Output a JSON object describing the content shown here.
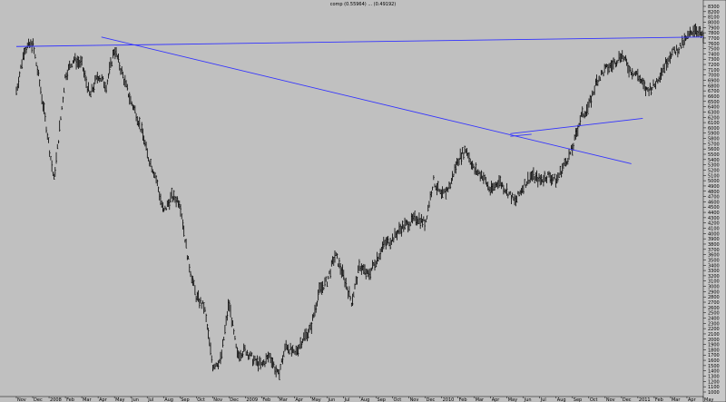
{
  "title": "comp (0.55964) ... (0.49192)",
  "chart_data": {
    "type": "line",
    "style": "ohlc-bars",
    "y_axis_side": "right",
    "grid": false,
    "title": "comp (0.55964) ... (0.49192)",
    "xlabel": "",
    "ylabel": "",
    "ylim": [
      1000,
      8300
    ],
    "yticks": [
      1000,
      1100,
      1200,
      1300,
      1400,
      1500,
      1600,
      1700,
      1800,
      1900,
      2000,
      2100,
      2200,
      2300,
      2400,
      2500,
      2600,
      2700,
      2800,
      2900,
      3000,
      3100,
      3200,
      3300,
      3400,
      3500,
      3600,
      3700,
      3800,
      3900,
      4000,
      4100,
      4200,
      4300,
      4400,
      4500,
      4600,
      4700,
      4800,
      4900,
      5000,
      5100,
      5200,
      5300,
      5400,
      5500,
      5600,
      5700,
      5800,
      5900,
      6000,
      6100,
      6200,
      6300,
      6400,
      6500,
      6600,
      6700,
      6800,
      6900,
      7000,
      7100,
      7200,
      7300,
      7400,
      7500,
      7600,
      7700,
      7800,
      7900,
      8000,
      8100,
      8200,
      8300
    ],
    "x_tick_labels": [
      "Nov",
      "Dec",
      "2008",
      "Feb",
      "Mar",
      "Apr",
      "May",
      "Jun",
      "Jul",
      "Aug",
      "Sep",
      "Oct",
      "Nov",
      "Dec",
      "2009",
      "Feb",
      "Mar",
      "Apr",
      "May",
      "Jun",
      "Jul",
      "Aug",
      "Sep",
      "Oct",
      "Nov",
      "Dec",
      "2010",
      "Feb",
      "Mar",
      "Apr",
      "May",
      "Jun",
      "Jul",
      "Aug",
      "Sep",
      "Oct",
      "Nov",
      "Dec",
      "2011",
      "Feb",
      "Mar",
      "Apr",
      "May"
    ],
    "x_range": [
      0,
      42
    ],
    "series": [
      {
        "color": "#000000",
        "x": [
          0,
          0.5,
          1,
          1.4,
          1.8,
          2.3,
          3,
          3.5,
          4,
          4.5,
          5,
          5.5,
          6,
          6.5,
          7,
          7.3,
          7.8,
          8,
          8.5,
          9,
          9.5,
          10,
          10.5,
          11,
          11.5,
          12,
          12.5,
          13,
          13.5,
          14,
          14.5,
          15,
          15.5,
          16,
          16.5,
          17,
          17.5,
          18,
          18.5,
          19,
          19.5,
          20,
          20.5,
          21,
          21.5,
          22,
          22.5,
          23,
          23.5,
          24,
          24.5,
          25,
          25.5,
          26,
          26.5,
          27,
          27.5,
          28,
          28.5,
          29,
          29.5,
          30,
          30.5,
          31,
          31.5,
          32,
          32.5,
          33,
          33.5,
          34,
          34.5,
          35,
          35.5,
          36,
          36.5,
          37,
          37.5,
          38,
          38.5,
          39,
          39.5,
          40,
          40.5,
          41,
          41.5,
          42
        ],
        "y": [
          6700,
          7500,
          7600,
          6900,
          6100,
          5000,
          7000,
          7300,
          7200,
          6600,
          7000,
          6800,
          7500,
          7000,
          6500,
          6300,
          5800,
          5500,
          5100,
          4400,
          4700,
          4600,
          3500,
          2800,
          2600,
          1500,
          1600,
          2700,
          1700,
          1800,
          1600,
          1500,
          1700,
          1300,
          1900,
          1700,
          2000,
          2200,
          2900,
          3100,
          3600,
          3200,
          2700,
          3400,
          3200,
          3500,
          3800,
          3900,
          4100,
          4200,
          4300,
          4200,
          5000,
          4700,
          4900,
          5400,
          5600,
          5200,
          5100,
          4800,
          5000,
          4800,
          4600,
          4900,
          5100,
          5000,
          5100,
          5000,
          5300,
          5600,
          6200,
          6400,
          6900,
          7100,
          7200,
          7400,
          7100,
          7000,
          6700,
          6800,
          7100,
          7400,
          7500,
          7700,
          7900,
          7700
        ]
      }
    ],
    "trendlines": [
      {
        "color": "#3333ff",
        "from": [
          0,
          7540
        ],
        "to": [
          42,
          7720
        ]
      },
      {
        "color": "#3333ff",
        "from": [
          5.2,
          7720
        ],
        "to": [
          37.6,
          5320
        ]
      },
      {
        "color": "#3333ff",
        "from": [
          30.2,
          5890
        ],
        "to": [
          38.3,
          6180
        ]
      },
      {
        "color": "#3333ff",
        "from": [
          30.2,
          5840
        ],
        "to": [
          31.5,
          5880
        ]
      }
    ]
  }
}
